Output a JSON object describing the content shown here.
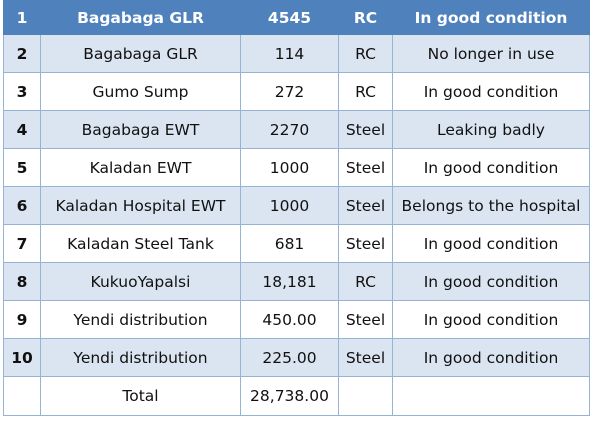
{
  "table": {
    "header": {
      "no": "1",
      "name": "Bagabaga GLR",
      "capacity": "4545",
      "material": "RC",
      "status": "In good condition"
    },
    "rows": [
      {
        "no": "2",
        "name": "Bagabaga GLR",
        "capacity": "114",
        "material": "RC",
        "status": "No longer in use"
      },
      {
        "no": "3",
        "name": "Gumo Sump",
        "capacity": "272",
        "material": "RC",
        "status": "In good condition"
      },
      {
        "no": "4",
        "name": "Bagabaga EWT",
        "capacity": "2270",
        "material": "Steel",
        "status": "Leaking badly"
      },
      {
        "no": "5",
        "name": "Kaladan EWT",
        "capacity": "1000",
        "material": "Steel",
        "status": "In good condition"
      },
      {
        "no": "6",
        "name": "Kaladan Hospital EWT",
        "capacity": "1000",
        "material": "Steel",
        "status": "Belongs to the hospital"
      },
      {
        "no": "7",
        "name": "Kaladan Steel Tank",
        "capacity": "681",
        "material": "Steel",
        "status": "In good condition"
      },
      {
        "no": "8",
        "name": "KukuoYapalsi",
        "capacity": "18,181",
        "material": "RC",
        "status": "In good condition"
      },
      {
        "no": "9",
        "name": "Yendi distribution",
        "capacity": "450.00",
        "material": "Steel",
        "status": "In good condition"
      },
      {
        "no": "10",
        "name": "Yendi distribution",
        "capacity": "225.00",
        "material": "Steel",
        "status": "In good condition"
      }
    ],
    "total": {
      "label": "Total",
      "capacity": "28,738.00"
    }
  },
  "colors": {
    "header_bg": "#4f81bd",
    "band_bg": "#dbe5f1",
    "border": "#95b3d7"
  }
}
